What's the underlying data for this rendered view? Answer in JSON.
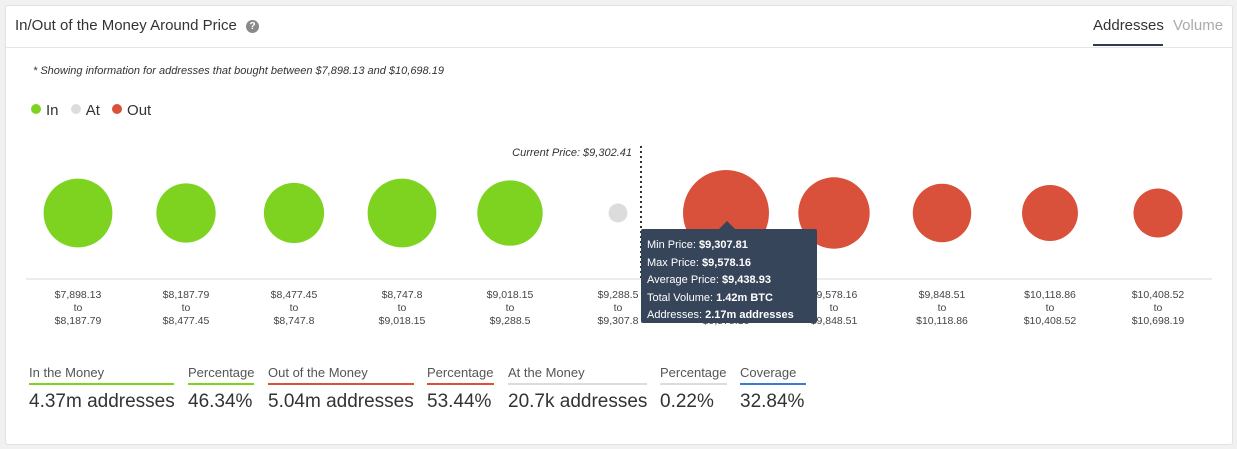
{
  "header": {
    "title": "In/Out of the Money Around Price",
    "help_icon": "question-circle-icon",
    "tabs": [
      {
        "label": "Addresses",
        "active": true
      },
      {
        "label": "Volume",
        "active": false
      }
    ]
  },
  "note": "* Showing information for addresses that bought between $7,898.13 and $10,698.19",
  "legend": [
    {
      "label": "In",
      "color": "#7ed321"
    },
    {
      "label": "At",
      "color": "#dcdcdc"
    },
    {
      "label": "Out",
      "color": "#d9513a"
    }
  ],
  "chart_data": {
    "type": "scatter",
    "current_price_label": "Current Price: $9,302.41",
    "current_price": 9302.41,
    "points": [
      {
        "from": "$7,898.13",
        "to": "$8,187.79",
        "status": "in",
        "relative_size": 0.8
      },
      {
        "from": "$8,187.79",
        "to": "$8,477.45",
        "status": "in",
        "relative_size": 0.69
      },
      {
        "from": "$8,477.45",
        "to": "$8,747.8",
        "status": "in",
        "relative_size": 0.7
      },
      {
        "from": "$8,747.8",
        "to": "$9,018.15",
        "status": "in",
        "relative_size": 0.8
      },
      {
        "from": "$9,018.15",
        "to": "$9,288.5",
        "status": "in",
        "relative_size": 0.76
      },
      {
        "from": "$9,288.5",
        "to": "$9,307.8",
        "status": "at",
        "relative_size": 0.22
      },
      {
        "from": "$9,307.8",
        "to": "$9,578.16",
        "status": "out",
        "relative_size": 1.0
      },
      {
        "from": "$9,578.16",
        "to": "$9,848.51",
        "status": "out",
        "relative_size": 0.83
      },
      {
        "from": "$9,848.51",
        "to": "$10,118.86",
        "status": "out",
        "relative_size": 0.68
      },
      {
        "from": "$10,118.86",
        "to": "$10,408.52",
        "status": "out",
        "relative_size": 0.65
      },
      {
        "from": "$10,408.52",
        "to": "$10,698.19",
        "status": "out",
        "relative_size": 0.57
      }
    ],
    "tick_to_word": "to",
    "colors": {
      "in": "#7ed321",
      "at": "#dcdcdc",
      "out": "#d9513a"
    }
  },
  "tooltip": {
    "min_price_label": "Min Price:",
    "min_price": "$9,307.81",
    "max_price_label": "Max Price:",
    "max_price": "$9,578.16",
    "avg_price_label": "Average Price:",
    "avg_price": "$9,438.93",
    "volume_label": "Total Volume:",
    "volume": "1.42m BTC",
    "addresses_label": "Addresses:",
    "addresses": "2.17m addresses"
  },
  "stats": [
    {
      "label": "In the Money",
      "value": "4.37m addresses",
      "color": "#7ed321"
    },
    {
      "label": "Percentage",
      "value": "46.34%",
      "color": "#7ed321"
    },
    {
      "label": "Out of the Money",
      "value": "5.04m addresses",
      "color": "#d9513a"
    },
    {
      "label": "Percentage",
      "value": "53.44%",
      "color": "#d9513a"
    },
    {
      "label": "At the Money",
      "value": "20.7k addresses",
      "color": "#dcdcdc"
    },
    {
      "label": "Percentage",
      "value": "0.22%",
      "color": "#dcdcdc"
    },
    {
      "label": "Coverage",
      "value": "32.84%",
      "color": "#3a7bd5"
    }
  ]
}
